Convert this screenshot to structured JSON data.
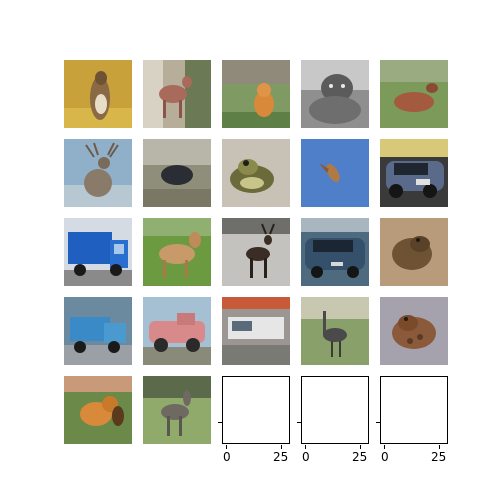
{
  "figure": {
    "rows": 5,
    "cols": 5,
    "images": [
      {
        "subject": "meerkat",
        "bg": "#c9a13a"
      },
      {
        "subject": "deer",
        "bg": "#b7ae9a"
      },
      {
        "subject": "cat",
        "bg": "#7f9a63"
      },
      {
        "subject": "cat-grayscale",
        "bg": "#8f8f8f"
      },
      {
        "subject": "deer",
        "bg": "#7c9a5a"
      },
      {
        "subject": "deer",
        "bg": "#8fb0c8"
      },
      {
        "subject": "bird",
        "bg": "#8e8e7a"
      },
      {
        "subject": "frog",
        "bg": "#c7c1b6"
      },
      {
        "subject": "bird",
        "bg": "#4f7fc9"
      },
      {
        "subject": "car",
        "bg": "#3a3a3a"
      },
      {
        "subject": "truck",
        "bg": "#d4dbe3"
      },
      {
        "subject": "horse",
        "bg": "#6b9a40"
      },
      {
        "subject": "deer",
        "bg": "#c4c2bf"
      },
      {
        "subject": "car",
        "bg": "#4e6a7f"
      },
      {
        "subject": "frog",
        "bg": "#b79b7a"
      },
      {
        "subject": "truck",
        "bg": "#6b8aa0"
      },
      {
        "subject": "truck",
        "bg": "#a6c0d3"
      },
      {
        "subject": "truck",
        "bg": "#9b9691"
      },
      {
        "subject": "bird",
        "bg": "#8aa06a"
      },
      {
        "subject": "frog",
        "bg": "#a6a2ad"
      },
      {
        "subject": "dog",
        "bg": "#6b8a4a"
      },
      {
        "subject": "horse",
        "bg": "#8faa6a"
      }
    ],
    "empty_axes": [
      {
        "xtick_labels": [
          "0",
          "25"
        ]
      },
      {
        "xtick_labels": [
          "0",
          "25"
        ]
      },
      {
        "xtick_labels": [
          "0",
          "25"
        ]
      }
    ]
  }
}
